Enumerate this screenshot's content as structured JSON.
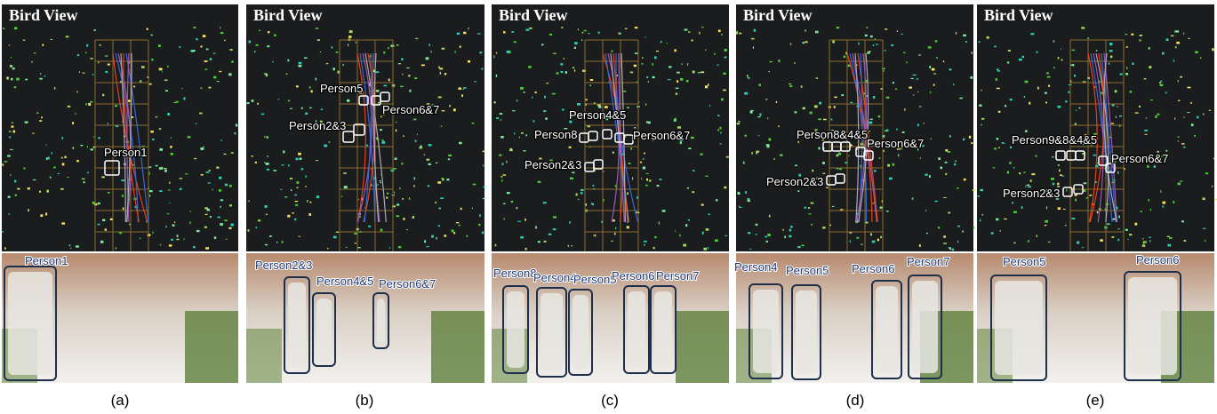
{
  "panels": [
    {
      "bird_title": "Bird View",
      "bird_labels": [
        "Person1"
      ],
      "camera_labels": [
        "Person1"
      ],
      "caption": "(a)"
    },
    {
      "bird_title": "Bird View",
      "bird_labels": [
        "Person5",
        "Person2&3",
        "Person6&7"
      ],
      "camera_labels": [
        "Person2&3",
        "Person4&5",
        "Person6&7"
      ],
      "caption": "(b)"
    },
    {
      "bird_title": "Bird View",
      "bird_labels": [
        "Person4&5",
        "Person8",
        "Person6&7",
        "Person2&3"
      ],
      "camera_labels": [
        "Person8",
        "Person4",
        "Person5",
        "Person6",
        "Person7"
      ],
      "caption": "(c)"
    },
    {
      "bird_title": "Bird View",
      "bird_labels": [
        "Person8&4&5",
        "Person6&7",
        "Person2&3"
      ],
      "camera_labels": [
        "Person4",
        "Person5",
        "Person6",
        "Person7"
      ],
      "caption": "(d)"
    },
    {
      "bird_title": "Bird View",
      "bird_labels": [
        "Person9&8&4&5",
        "Person6&7",
        "Person2&3"
      ],
      "camera_labels": [
        "Person5",
        "Person6"
      ],
      "caption": "(e)"
    }
  ]
}
